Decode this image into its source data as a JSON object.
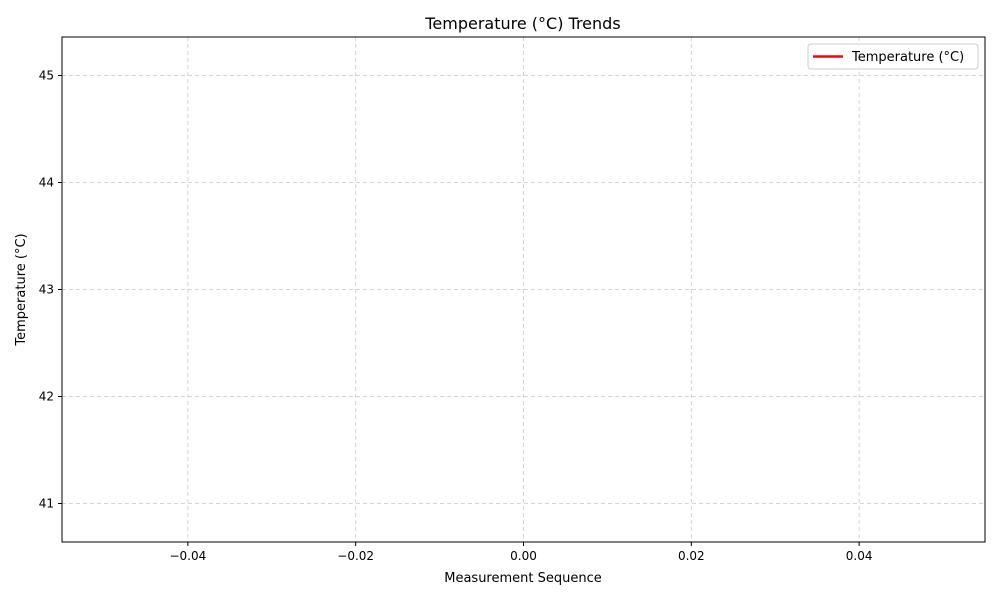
{
  "chart_data": {
    "type": "line",
    "title": "Temperature (°C) Trends",
    "xlabel": "Measurement Sequence",
    "ylabel": "Temperature (°C)",
    "xlim": [
      -0.055,
      0.055
    ],
    "ylim": [
      40.64,
      45.36
    ],
    "x_ticks": [
      -0.04,
      -0.02,
      0.0,
      0.02,
      0.04
    ],
    "x_tick_labels": [
      "−0.04",
      "−0.02",
      "0.00",
      "0.02",
      "0.04"
    ],
    "y_ticks": [
      41,
      42,
      43,
      44,
      45
    ],
    "y_tick_labels": [
      "41",
      "42",
      "43",
      "44",
      "45"
    ],
    "grid": true,
    "legend_position": "top-right",
    "series": [
      {
        "name": "Temperature (°C)",
        "color": "#ff0000",
        "x": [],
        "y": []
      }
    ]
  },
  "colors": {
    "series_line": "#ff0000",
    "grid": "#c8c8c8",
    "axis": "#000000",
    "legend_border": "#cccccc"
  }
}
